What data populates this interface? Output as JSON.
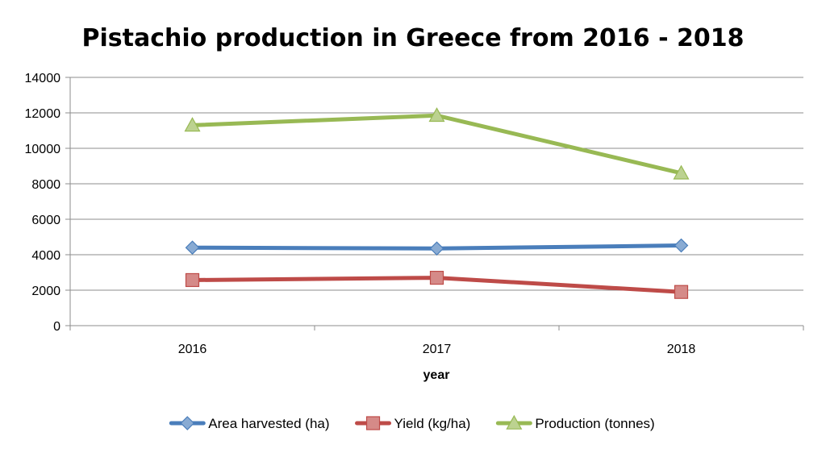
{
  "chart_data": {
    "type": "line",
    "title": "Pistachio production in Greece from 2016 - 2018",
    "xlabel": "year",
    "ylabel": "",
    "categories": [
      "2016",
      "2017",
      "2018"
    ],
    "ylim": [
      0,
      14000
    ],
    "yticks": [
      0,
      2000,
      4000,
      6000,
      8000,
      10000,
      12000,
      14000
    ],
    "grid": true,
    "legend_position": "bottom",
    "series": [
      {
        "name": "Area harvested (ha)",
        "values": [
          4400,
          4350,
          4520
        ],
        "color": "#4a7ebb",
        "marker": "diamond"
      },
      {
        "name": "Yield (kg/ha)",
        "values": [
          2570,
          2700,
          1900
        ],
        "color": "#be4b48",
        "marker": "square"
      },
      {
        "name": "Production (tonnes)",
        "values": [
          11300,
          11850,
          8600
        ],
        "color": "#98b954",
        "marker": "triangle"
      }
    ]
  }
}
